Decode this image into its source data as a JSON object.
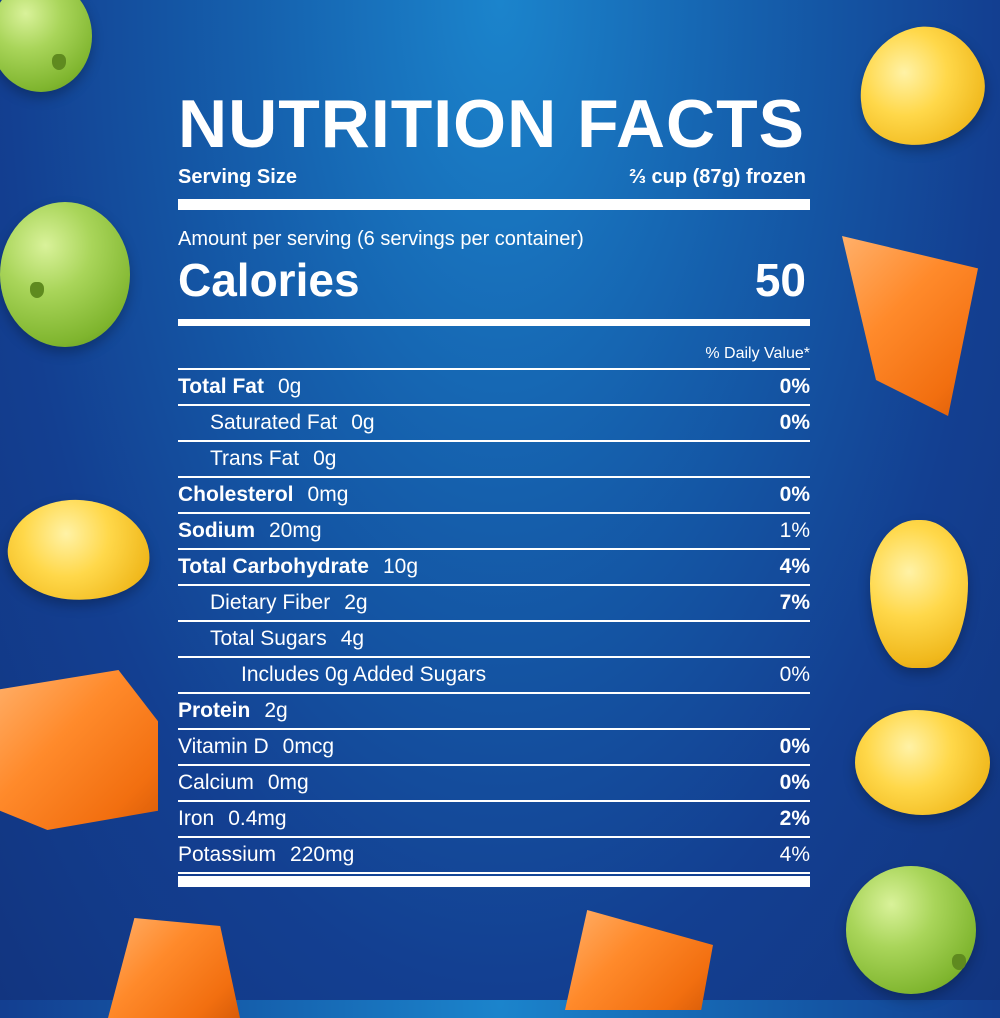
{
  "colors": {
    "background": "#1560ad",
    "text": "#ffffff"
  },
  "panel": {
    "title": "NUTRITION FACTS",
    "serving_label": "Serving Size",
    "serving_value": "⅔ cup (87g) frozen",
    "amount_per_serving": "Amount per serving (6 servings per container)",
    "calories_label": "Calories",
    "calories_value": "50",
    "daily_value_header": "% Daily Value*",
    "rows": [
      {
        "name": "Total Fat",
        "amount": "0g",
        "dv": "0%"
      },
      {
        "name": "Saturated Fat",
        "amount": "0g",
        "dv": "0%"
      },
      {
        "name": "Trans Fat",
        "amount": "0g",
        "dv": ""
      },
      {
        "name": "Cholesterol",
        "amount": "0mg",
        "dv": "0%"
      },
      {
        "name": "Sodium",
        "amount": "20mg",
        "dv": "1%"
      },
      {
        "name": "Total Carbohydrate",
        "amount": "10g",
        "dv": "4%"
      },
      {
        "name": "Dietary Fiber",
        "amount": "2g",
        "dv": "7%"
      },
      {
        "name": "Total Sugars",
        "amount": "4g",
        "dv": ""
      },
      {
        "name": "Includes 0g Added Sugars",
        "amount": "",
        "dv": "0%"
      },
      {
        "name": "Protein",
        "amount": "2g",
        "dv": ""
      },
      {
        "name": "Vitamin D",
        "amount": "0mcg",
        "dv": "0%"
      },
      {
        "name": "Calcium",
        "amount": "0mg",
        "dv": "0%"
      },
      {
        "name": "Iron",
        "amount": "0.4mg",
        "dv": "2%"
      },
      {
        "name": "Potassium",
        "amount": "220mg",
        "dv": "4%"
      }
    ]
  }
}
